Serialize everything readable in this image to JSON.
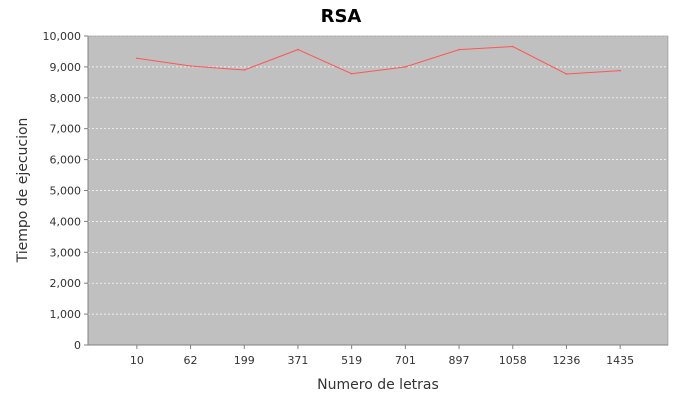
{
  "chart_data": {
    "type": "line",
    "title": "RSA",
    "xlabel": "Numero de letras",
    "ylabel": "Tiempo de ejecucion",
    "categories": [
      "10",
      "62",
      "199",
      "371",
      "519",
      "701",
      "897",
      "1058",
      "1236",
      "1435"
    ],
    "series": [
      {
        "values": [
          9280,
          9030,
          8900,
          9560,
          8780,
          9000,
          9560,
          9660,
          8770,
          8880
        ],
        "color": "#ff5555"
      }
    ],
    "ylim": [
      0,
      10000
    ],
    "yticks": [
      0,
      1000,
      2000,
      3000,
      4000,
      5000,
      6000,
      7000,
      8000,
      9000,
      10000
    ],
    "ytick_labels": [
      "0",
      "1,000",
      "2,000",
      "3,000",
      "4,000",
      "5,000",
      "6,000",
      "7,000",
      "8,000",
      "9,000",
      "10,000"
    ],
    "grid": true,
    "legend": "none",
    "plot_background": "#c0c0c0",
    "grid_color": "#ffffff"
  }
}
